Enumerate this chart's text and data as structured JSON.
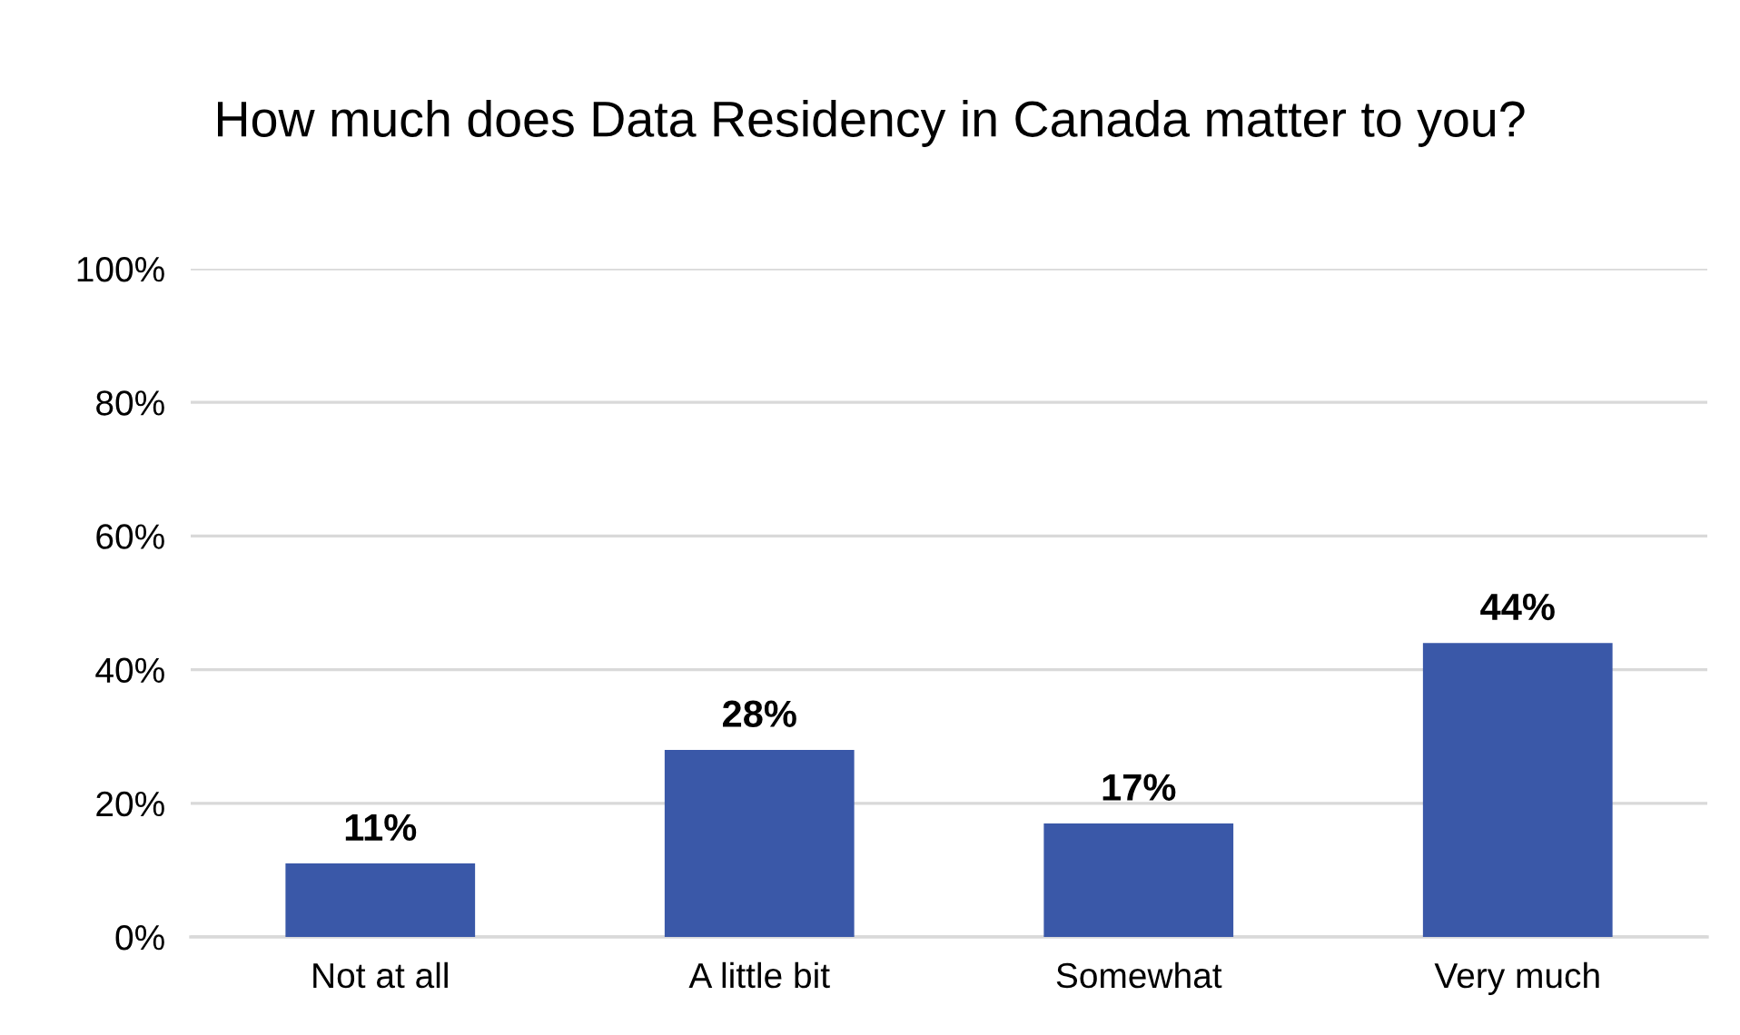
{
  "chart_data": {
    "type": "bar",
    "title": "How much does Data Residency in Canada matter to you?",
    "categories": [
      "Not at all",
      "A little bit",
      "Somewhat",
      "Very much"
    ],
    "values": [
      11,
      28,
      17,
      44
    ],
    "value_labels": [
      "11%",
      "28%",
      "17%",
      "44%"
    ],
    "color": "#3a58a8",
    "ylim": [
      0,
      100
    ],
    "yticks": [
      {
        "value": 0,
        "label": "0%"
      },
      {
        "value": 20,
        "label": "20%"
      },
      {
        "value": 40,
        "label": "40%"
      },
      {
        "value": 60,
        "label": "60%"
      },
      {
        "value": 80,
        "label": "80%"
      },
      {
        "value": 100,
        "label": "100%"
      }
    ],
    "grid": "y",
    "legend": false
  }
}
